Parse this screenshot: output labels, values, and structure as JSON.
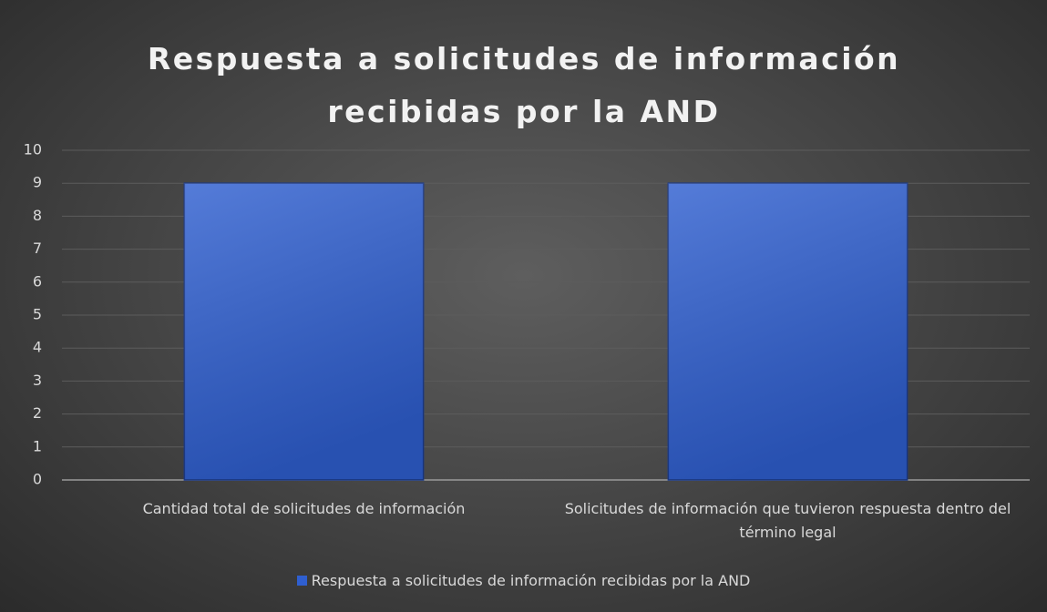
{
  "chart_data": {
    "type": "bar",
    "title": "Respuesta a solicitudes de información recibidas por la AND",
    "categories": [
      "Cantidad total de solicitudes de información",
      "Solicitudes de información que tuvieron respuesta dentro del término legal"
    ],
    "series": [
      {
        "name": "Respuesta a solicitudes de información recibidas por la AND",
        "color": "#2f5fd0",
        "values": [
          9,
          9
        ]
      }
    ],
    "ylim": [
      0,
      10
    ],
    "yticks": [
      0,
      1,
      2,
      3,
      4,
      5,
      6,
      7,
      8,
      9,
      10
    ],
    "grid": true,
    "legend": "bottom"
  }
}
